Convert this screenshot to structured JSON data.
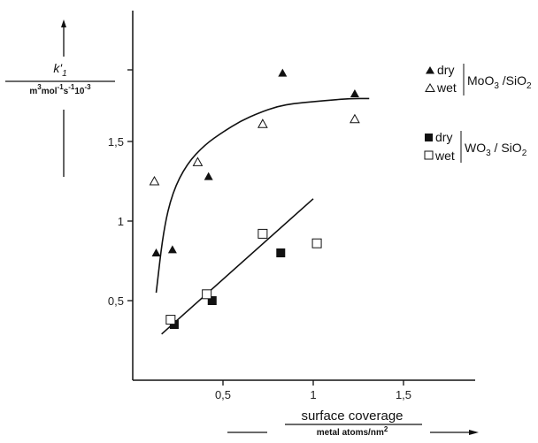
{
  "chart_data": {
    "type": "scatter",
    "xlabel": "surface coverage",
    "xlabel_unit": "metal atoms/nm2",
    "ylabel": "k'1",
    "ylabel_unit": "m3mol-1s-110-3",
    "xlim": [
      0,
      1.75
    ],
    "ylim": [
      0,
      2.2
    ],
    "x_ticks": [
      {
        "value": 0.5,
        "label": "0,5"
      },
      {
        "value": 1.0,
        "label": "1"
      },
      {
        "value": 1.5,
        "label": "1,5"
      }
    ],
    "y_ticks": [
      {
        "value": 0.5,
        "label": "0,5"
      },
      {
        "value": 1.0,
        "label": "1"
      },
      {
        "value": 1.5,
        "label": "1,5"
      }
    ],
    "legend": [
      {
        "group": "MoO3 / SiO2",
        "entries": [
          {
            "label": "dry",
            "marker": "filled-triangle"
          },
          {
            "label": "wet",
            "marker": "open-triangle"
          }
        ]
      },
      {
        "group": "WO3 / SiO2",
        "entries": [
          {
            "label": "dry",
            "marker": "filled-square"
          },
          {
            "label": "wet",
            "marker": "open-square"
          }
        ]
      }
    ],
    "legend_groups": [
      "MoO3 /SiO2",
      "WO3 / SiO2"
    ],
    "legend_placement": "right",
    "series": [
      {
        "name": "dry MoO3/SiO2",
        "marker": "filled-triangle",
        "x": [
          0.13,
          0.22,
          0.42,
          0.83,
          1.23
        ],
        "y": [
          0.8,
          0.82,
          1.28,
          1.93,
          1.8
        ]
      },
      {
        "name": "wet MoO3/SiO2",
        "marker": "open-triangle",
        "x": [
          0.12,
          0.36,
          0.72,
          1.23
        ],
        "y": [
          1.25,
          1.37,
          1.61,
          1.64
        ]
      },
      {
        "name": "dry WO3/SiO2",
        "marker": "filled-square",
        "x": [
          0.23,
          0.44,
          0.82
        ],
        "y": [
          0.35,
          0.5,
          0.8
        ]
      },
      {
        "name": "wet WO3/SiO2",
        "marker": "open-square",
        "x": [
          0.21,
          0.41,
          0.72,
          1.02
        ],
        "y": [
          0.38,
          0.54,
          0.92,
          0.86
        ]
      }
    ],
    "fit_curves": [
      {
        "for": "MoO3/SiO2",
        "x": [
          0.13,
          0.17,
          0.22,
          0.3,
          0.4,
          0.5,
          0.6,
          0.7,
          0.8,
          0.9,
          1.0,
          1.1,
          1.2,
          1.31
        ],
        "y": [
          0.55,
          0.94,
          1.18,
          1.36,
          1.48,
          1.56,
          1.63,
          1.68,
          1.72,
          1.74,
          1.75,
          1.76,
          1.77,
          1.77
        ]
      },
      {
        "for": "WO3/SiO2",
        "x": [
          0.16,
          1.0
        ],
        "y": [
          0.29,
          1.14
        ]
      }
    ]
  }
}
